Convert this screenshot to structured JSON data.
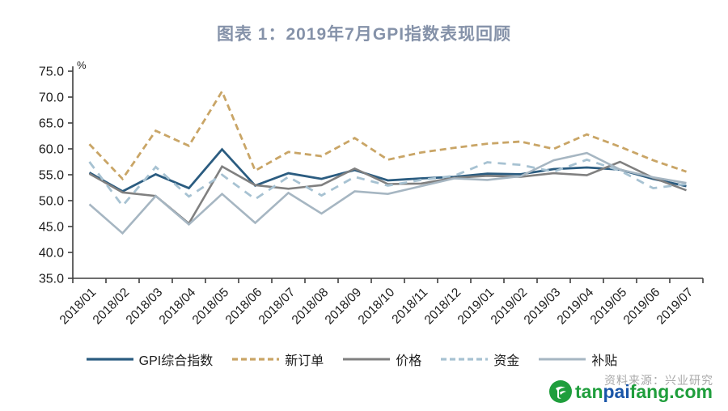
{
  "title": "图表 1：2019年7月GPI指数表现回顾",
  "chart_data": {
    "type": "line",
    "title": "图表 1：2019年7月GPI指数表现回顾",
    "unit_label": "%",
    "ylim": [
      35,
      75
    ],
    "ytick_step": 5,
    "grid": false,
    "legend_position": "bottom",
    "axis_color": "#3f3f3f",
    "tick_label_color": "#1c1c1c",
    "categories": [
      "2018/01",
      "2018/02",
      "2018/03",
      "2018/04",
      "2018/05",
      "2018/06",
      "2018/07",
      "2018/08",
      "2018/09",
      "2018/10",
      "2018/11",
      "2018/12",
      "2019/01",
      "2019/02",
      "2019/03",
      "2019/04",
      "2019/05",
      "2019/06",
      "2019/07"
    ],
    "series": [
      {
        "name": "GPI综合指数",
        "color": "#2b5c80",
        "dash": "",
        "width": 2.8,
        "values": [
          55.4,
          51.8,
          55.1,
          52.4,
          59.9,
          52.9,
          55.3,
          54.2,
          55.9,
          53.9,
          54.3,
          54.6,
          55.2,
          55.1,
          56.1,
          56.4,
          56.0,
          54.2,
          52.8
        ]
      },
      {
        "name": "新订单",
        "color": "#c9a566",
        "dash": "8,5",
        "width": 2.8,
        "values": [
          60.9,
          54.2,
          63.5,
          60.6,
          71.1,
          55.8,
          59.4,
          58.6,
          62.1,
          57.9,
          59.3,
          60.2,
          61.0,
          61.4,
          60.0,
          62.8,
          60.4,
          57.8,
          55.6
        ]
      },
      {
        "name": "价格",
        "color": "#808080",
        "dash": "",
        "width": 2.6,
        "values": [
          55.2,
          51.6,
          50.9,
          45.6,
          56.6,
          53.0,
          52.3,
          53.0,
          56.2,
          53.2,
          53.3,
          54.4,
          54.8,
          54.6,
          55.3,
          54.9,
          57.5,
          54.4,
          52.0
        ]
      },
      {
        "name": "资金",
        "color": "#a7c2d2",
        "dash": "10,8",
        "width": 2.8,
        "values": [
          57.5,
          49.0,
          56.5,
          50.8,
          55.0,
          50.3,
          54.6,
          51.0,
          54.6,
          52.9,
          54.0,
          54.8,
          57.4,
          56.9,
          55.6,
          57.9,
          55.8,
          52.4,
          53.2
        ]
      },
      {
        "name": "补贴",
        "color": "#a6b6c2",
        "dash": "",
        "width": 2.6,
        "values": [
          49.3,
          43.7,
          50.9,
          45.4,
          51.3,
          45.7,
          51.5,
          47.5,
          51.8,
          51.3,
          52.8,
          54.3,
          54.0,
          54.7,
          57.8,
          59.2,
          56.0,
          54.5,
          53.4
        ]
      }
    ]
  },
  "watermark": {
    "source_text": "资料来源：兴业研究",
    "logo": {
      "part1": "tan",
      "part2": "pai",
      "part3": "fang",
      "part4": ".com"
    }
  }
}
